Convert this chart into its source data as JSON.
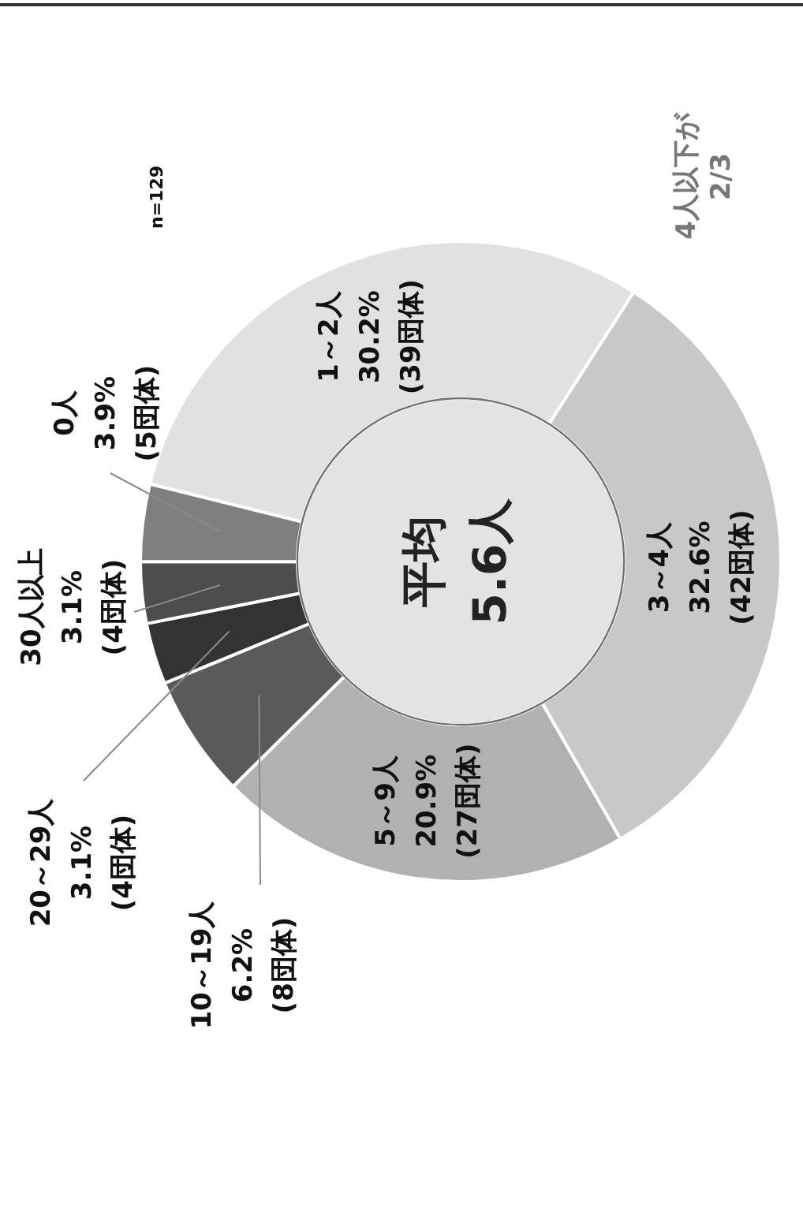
{
  "chart_data": {
    "type": "donut",
    "categories": [
      "1～2人",
      "3～4人",
      "5～9人",
      "10～19人",
      "20～29人",
      "30人以上",
      "0人"
    ],
    "values": [
      30.2,
      32.6,
      20.9,
      6.2,
      3.1,
      3.1,
      3.9
    ],
    "colors": [
      "#e1e1e1",
      "#c8c8c8",
      "#b1b1b1",
      "#5a5a5a",
      "#333333",
      "#4d4d4d",
      "#7f7f7f"
    ],
    "value_labels": [
      "30.2%\n(39団体)",
      "32.6%\n(42団体)",
      "20.9%\n(27団体)",
      "6.2%\n(8団体)",
      "3.1%\n(4団体)",
      "3.1%\n(4団体)",
      "3.9%\n(5団体)"
    ],
    "annotations": [
      "平均\n5.6人",
      "n=129",
      "4人以下が\n2/3"
    ],
    "legend": false
  }
}
